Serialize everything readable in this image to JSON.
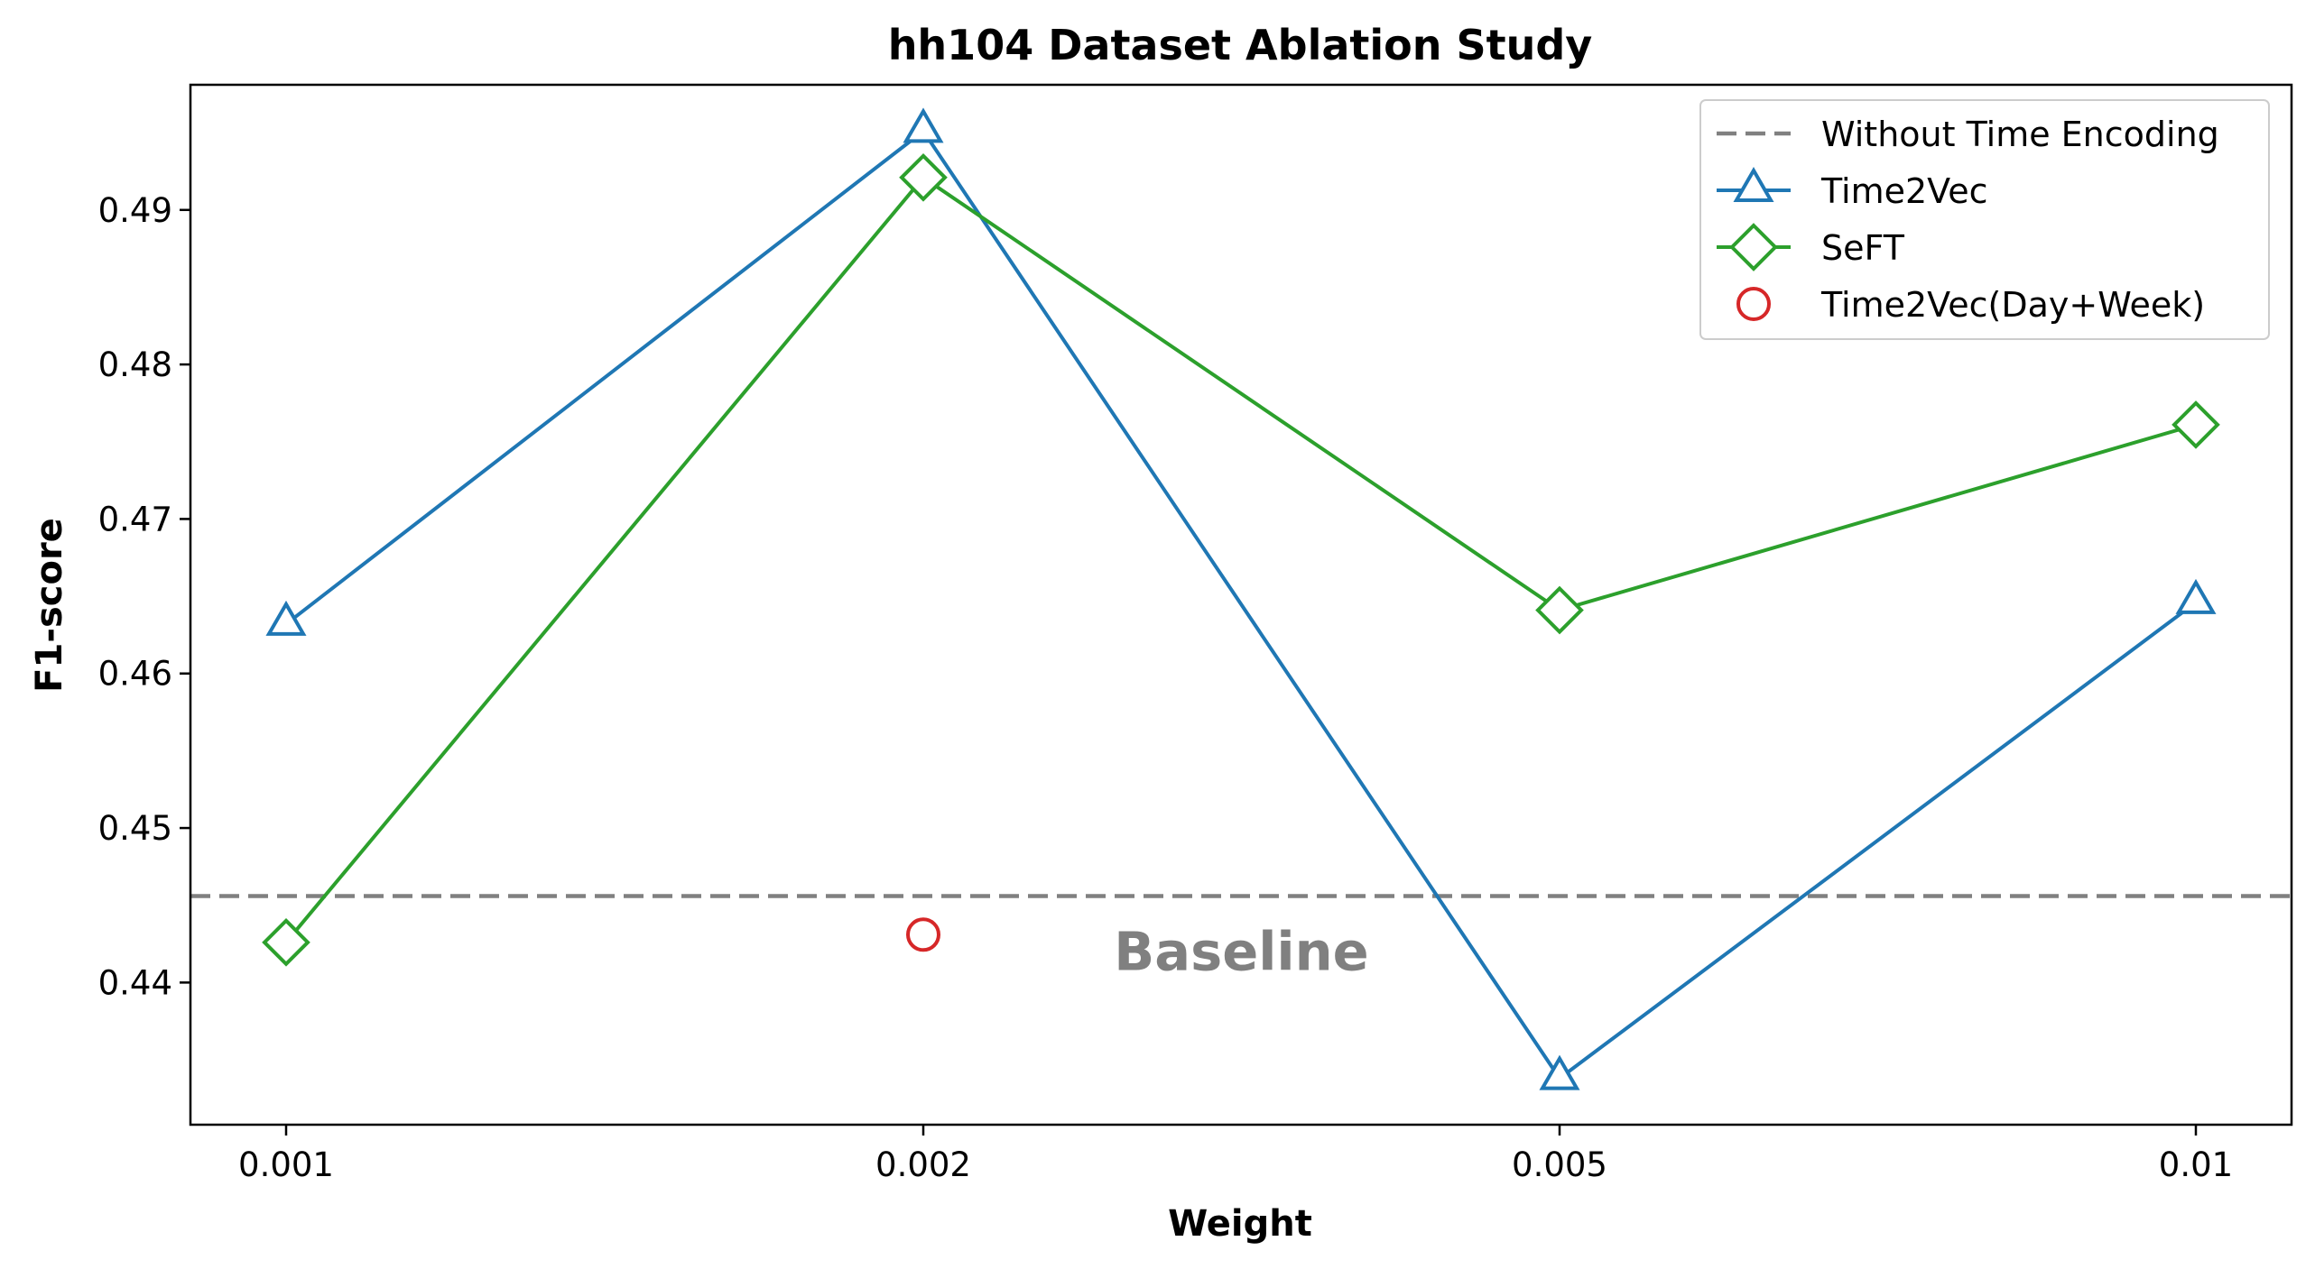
{
  "chart_data": {
    "type": "line",
    "title": "hh104 Dataset Ablation Study",
    "xlabel": "Weight",
    "ylabel": "F1-score",
    "categories": [
      "0.001",
      "0.002",
      "0.005",
      "0.01"
    ],
    "ylim": [
      0.4308,
      0.4981
    ],
    "yticks": [
      "0.44",
      "0.45",
      "0.46",
      "0.47",
      "0.48",
      "0.49"
    ],
    "grid": false,
    "legend_position": "top-right",
    "series": [
      {
        "name": "Time2Vec",
        "values": [
          0.4632,
          0.4951,
          0.4338,
          0.4646
        ],
        "color": "#1f77b4",
        "marker": "triangle"
      },
      {
        "name": "SeFT",
        "values": [
          0.4426,
          0.4921,
          0.4641,
          0.4761
        ],
        "color": "#2ca02c",
        "marker": "diamond"
      },
      {
        "name": "Time2Vec(Day+Week)",
        "points": [
          {
            "x": "0.002",
            "y": 0.4431
          }
        ],
        "color": "#d62728",
        "marker": "circle"
      }
    ],
    "reference_line": {
      "name": "Without Time Encoding",
      "value": 0.4456,
      "color": "#808080",
      "style": "dashed"
    },
    "annotations": [
      {
        "text": "Baseline",
        "x": "0.0025",
        "y": 0.4421,
        "color": "#808080"
      }
    ]
  }
}
